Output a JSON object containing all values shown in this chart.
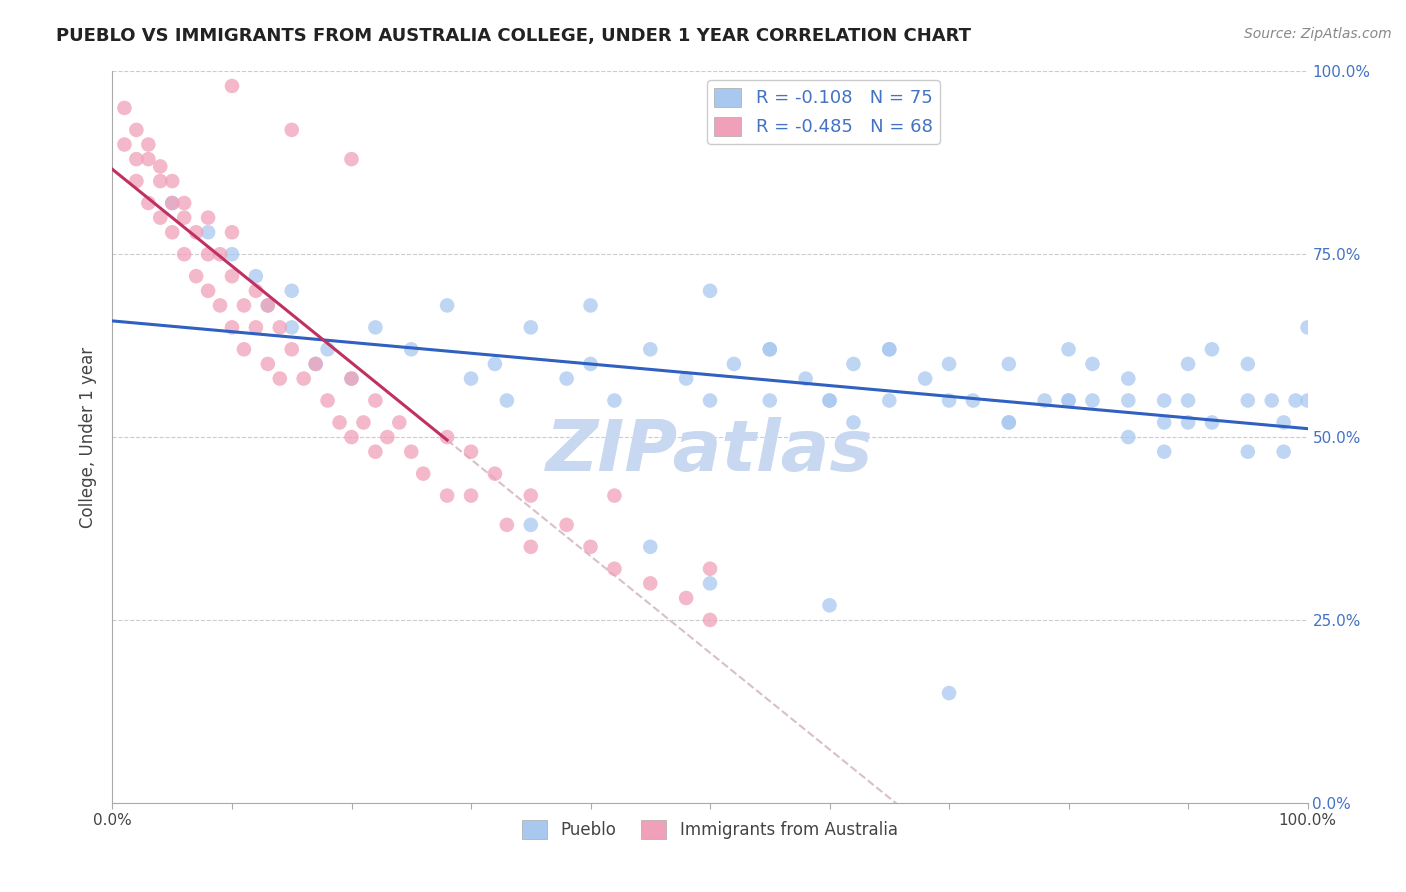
{
  "title": "PUEBLO VS IMMIGRANTS FROM AUSTRALIA COLLEGE, UNDER 1 YEAR CORRELATION CHART",
  "source": "Source: ZipAtlas.com",
  "ylabel": "College, Under 1 year",
  "legend_label1": "Pueblo",
  "legend_label2": "Immigrants from Australia",
  "R1": -0.108,
  "N1": 75,
  "R2": -0.485,
  "N2": 68,
  "color_blue": "#A8C8F0",
  "color_pink": "#F0A0B8",
  "line_color_blue": "#3060C0",
  "line_color_pink": "#C03060",
  "line_color_gray": "#D0B0B8",
  "background": "#FFFFFF",
  "xlim": [
    0.0,
    1.0
  ],
  "ylim": [
    0.0,
    1.0
  ],
  "yticks": [
    0.0,
    0.25,
    0.5,
    0.75,
    1.0
  ],
  "ytick_labels": [
    "0.0%",
    "25.0%",
    "50.0%",
    "75.0%",
    "100.0%"
  ],
  "xticks": [
    0.0,
    0.1,
    0.2,
    0.3,
    0.4,
    0.5,
    0.6,
    0.7,
    0.8,
    0.9,
    1.0
  ],
  "xtick_labels": [
    "0.0%",
    "",
    "",
    "",
    "",
    "",
    "",
    "",
    "",
    "",
    "100.0%"
  ],
  "pueblo_x": [
    0.05,
    0.08,
    0.1,
    0.12,
    0.13,
    0.15,
    0.15,
    0.17,
    0.18,
    0.2,
    0.22,
    0.25,
    0.28,
    0.3,
    0.32,
    0.33,
    0.35,
    0.38,
    0.4,
    0.42,
    0.45,
    0.48,
    0.5,
    0.52,
    0.55,
    0.55,
    0.58,
    0.6,
    0.62,
    0.62,
    0.65,
    0.65,
    0.68,
    0.7,
    0.72,
    0.75,
    0.75,
    0.78,
    0.8,
    0.8,
    0.82,
    0.85,
    0.85,
    0.88,
    0.88,
    0.9,
    0.9,
    0.92,
    0.92,
    0.95,
    0.95,
    0.97,
    0.98,
    0.99,
    1.0,
    0.4,
    0.5,
    0.55,
    0.6,
    0.65,
    0.7,
    0.75,
    0.8,
    0.82,
    0.85,
    0.88,
    0.9,
    0.95,
    0.98,
    1.0,
    0.35,
    0.45,
    0.5,
    0.6,
    0.7
  ],
  "pueblo_y": [
    0.82,
    0.78,
    0.75,
    0.72,
    0.68,
    0.65,
    0.7,
    0.6,
    0.62,
    0.58,
    0.65,
    0.62,
    0.68,
    0.58,
    0.6,
    0.55,
    0.65,
    0.58,
    0.6,
    0.55,
    0.62,
    0.58,
    0.55,
    0.6,
    0.62,
    0.55,
    0.58,
    0.55,
    0.6,
    0.52,
    0.62,
    0.55,
    0.58,
    0.6,
    0.55,
    0.6,
    0.52,
    0.55,
    0.62,
    0.55,
    0.6,
    0.55,
    0.58,
    0.55,
    0.52,
    0.6,
    0.55,
    0.62,
    0.52,
    0.6,
    0.55,
    0.55,
    0.52,
    0.55,
    0.65,
    0.68,
    0.7,
    0.62,
    0.55,
    0.62,
    0.55,
    0.52,
    0.55,
    0.55,
    0.5,
    0.48,
    0.52,
    0.48,
    0.48,
    0.55,
    0.38,
    0.35,
    0.3,
    0.27,
    0.15
  ],
  "immig_x": [
    0.01,
    0.01,
    0.02,
    0.02,
    0.02,
    0.03,
    0.03,
    0.03,
    0.04,
    0.04,
    0.04,
    0.05,
    0.05,
    0.05,
    0.06,
    0.06,
    0.06,
    0.07,
    0.07,
    0.08,
    0.08,
    0.08,
    0.09,
    0.09,
    0.1,
    0.1,
    0.1,
    0.11,
    0.11,
    0.12,
    0.12,
    0.13,
    0.13,
    0.14,
    0.14,
    0.15,
    0.16,
    0.17,
    0.18,
    0.19,
    0.2,
    0.2,
    0.21,
    0.22,
    0.22,
    0.23,
    0.24,
    0.25,
    0.26,
    0.28,
    0.28,
    0.3,
    0.3,
    0.32,
    0.33,
    0.35,
    0.35,
    0.38,
    0.4,
    0.42,
    0.42,
    0.45,
    0.48,
    0.5,
    0.5,
    0.1,
    0.15,
    0.2
  ],
  "immig_y": [
    0.9,
    0.95,
    0.88,
    0.92,
    0.85,
    0.9,
    0.82,
    0.88,
    0.85,
    0.8,
    0.87,
    0.82,
    0.78,
    0.85,
    0.8,
    0.75,
    0.82,
    0.78,
    0.72,
    0.8,
    0.75,
    0.7,
    0.75,
    0.68,
    0.72,
    0.65,
    0.78,
    0.68,
    0.62,
    0.7,
    0.65,
    0.68,
    0.6,
    0.65,
    0.58,
    0.62,
    0.58,
    0.6,
    0.55,
    0.52,
    0.58,
    0.5,
    0.52,
    0.55,
    0.48,
    0.5,
    0.52,
    0.48,
    0.45,
    0.5,
    0.42,
    0.48,
    0.42,
    0.45,
    0.38,
    0.42,
    0.35,
    0.38,
    0.35,
    0.32,
    0.42,
    0.3,
    0.28,
    0.32,
    0.25,
    0.98,
    0.92,
    0.88
  ],
  "watermark": "ZIPatlas",
  "watermark_color": "#C8D8F0",
  "title_fontsize": 13,
  "source_fontsize": 10,
  "axis_label_fontsize": 12,
  "tick_fontsize": 11,
  "legend_fontsize": 13
}
